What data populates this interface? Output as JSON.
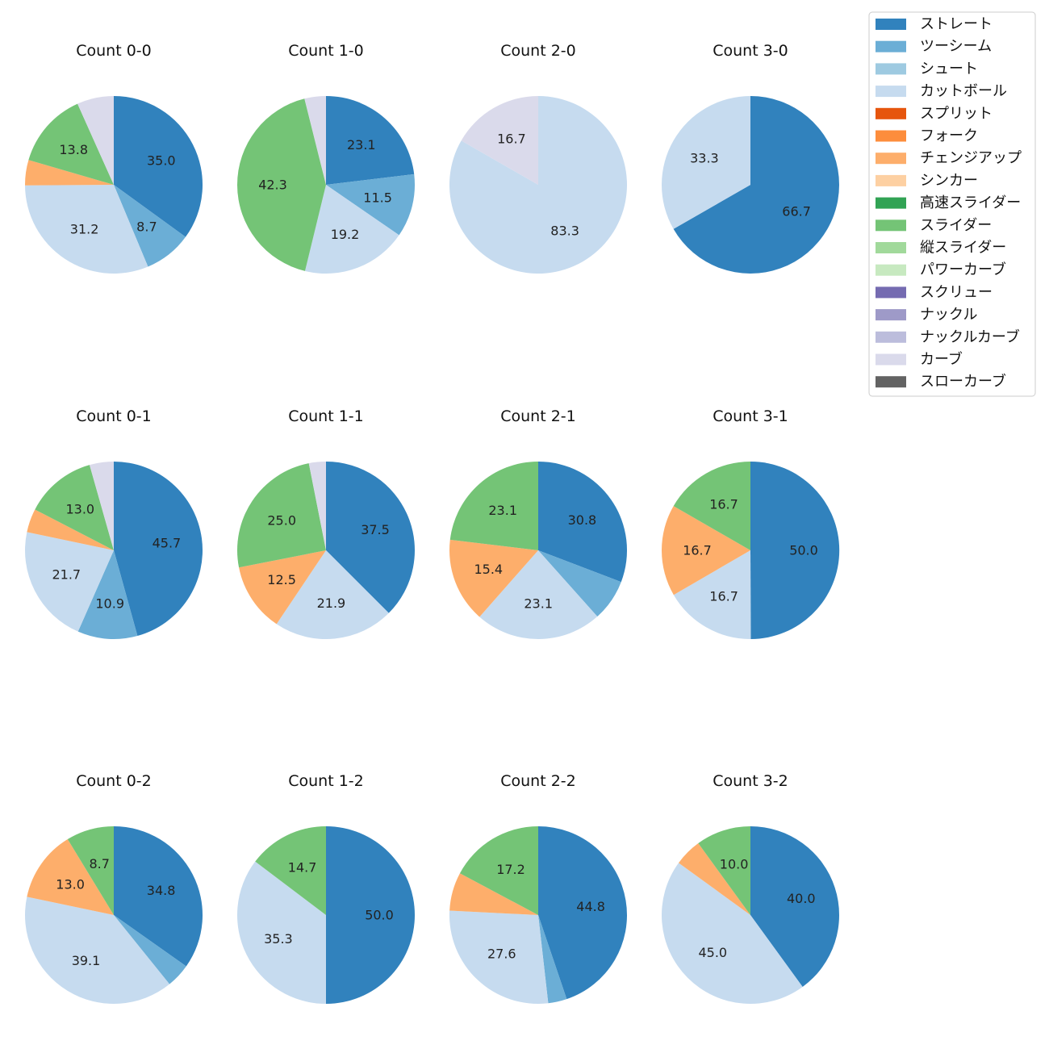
{
  "chart_data": {
    "type": "pie",
    "series_order": [
      "ストレート",
      "ツーシーム",
      "シュート",
      "カットボール",
      "スプリット",
      "フォーク",
      "チェンジアップ",
      "シンカー",
      "高速スライダー",
      "スライダー",
      "縦スライダー",
      "パワーカーブ",
      "スクリュー",
      "ナックル",
      "ナックルカーブ",
      "カーブ",
      "スローカーブ"
    ],
    "colors": {
      "ストレート": "#3182bd",
      "ツーシーム": "#6baed6",
      "シュート": "#9ecae1",
      "カットボール": "#c6dbef",
      "スプリット": "#e6550d",
      "フォーク": "#fd8d3c",
      "チェンジアップ": "#fdae6b",
      "シンカー": "#fdd0a2",
      "高速スライダー": "#31a354",
      "スライダー": "#74c476",
      "縦スライダー": "#a1d99b",
      "パワーカーブ": "#c7e9c0",
      "スクリュー": "#756bb1",
      "ナックル": "#9e9ac8",
      "ナックルカーブ": "#bcbddc",
      "カーブ": "#dadaeb",
      "スローカーブ": "#636363"
    },
    "legend": [
      "ストレート",
      "ツーシーム",
      "シュート",
      "カットボール",
      "スプリット",
      "フォーク",
      "チェンジアップ",
      "シンカー",
      "高速スライダー",
      "スライダー",
      "縦スライダー",
      "パワーカーブ",
      "スクリュー",
      "ナックル",
      "ナックルカーブ",
      "カーブ",
      "スローカーブ"
    ],
    "pies": [
      {
        "title": "Count 0-0",
        "slices": [
          {
            "label": "ストレート",
            "value": 35.0,
            "text": "35.0"
          },
          {
            "label": "ツーシーム",
            "value": 8.7,
            "text": "8.7"
          },
          {
            "label": "カットボール",
            "value": 31.2,
            "text": "31.2"
          },
          {
            "label": "チェンジアップ",
            "value": 4.6,
            "text": ""
          },
          {
            "label": "スライダー",
            "value": 13.8,
            "text": "13.8"
          },
          {
            "label": "カーブ",
            "value": 6.7,
            "text": ""
          }
        ]
      },
      {
        "title": "Count 1-0",
        "slices": [
          {
            "label": "ストレート",
            "value": 23.1,
            "text": "23.1"
          },
          {
            "label": "ツーシーム",
            "value": 11.5,
            "text": "11.5"
          },
          {
            "label": "カットボール",
            "value": 19.2,
            "text": "19.2"
          },
          {
            "label": "スライダー",
            "value": 42.3,
            "text": "42.3"
          },
          {
            "label": "カーブ",
            "value": 3.9,
            "text": ""
          }
        ]
      },
      {
        "title": "Count 2-0",
        "slices": [
          {
            "label": "カットボール",
            "value": 83.3,
            "text": "83.3"
          },
          {
            "label": "カーブ",
            "value": 16.7,
            "text": "16.7"
          }
        ]
      },
      {
        "title": "Count 3-0",
        "slices": [
          {
            "label": "ストレート",
            "value": 66.7,
            "text": "66.7"
          },
          {
            "label": "カットボール",
            "value": 33.3,
            "text": "33.3"
          }
        ]
      },
      {
        "title": "Count 0-1",
        "slices": [
          {
            "label": "ストレート",
            "value": 45.7,
            "text": "45.7"
          },
          {
            "label": "ツーシーム",
            "value": 10.9,
            "text": "10.9"
          },
          {
            "label": "カットボール",
            "value": 21.7,
            "text": "21.7"
          },
          {
            "label": "チェンジアップ",
            "value": 4.3,
            "text": ""
          },
          {
            "label": "スライダー",
            "value": 13.0,
            "text": "13.0"
          },
          {
            "label": "カーブ",
            "value": 4.4,
            "text": ""
          }
        ]
      },
      {
        "title": "Count 1-1",
        "slices": [
          {
            "label": "ストレート",
            "value": 37.5,
            "text": "37.5"
          },
          {
            "label": "カットボール",
            "value": 21.9,
            "text": "21.9"
          },
          {
            "label": "チェンジアップ",
            "value": 12.5,
            "text": "12.5"
          },
          {
            "label": "スライダー",
            "value": 25.0,
            "text": "25.0"
          },
          {
            "label": "カーブ",
            "value": 3.1,
            "text": ""
          }
        ]
      },
      {
        "title": "Count 2-1",
        "slices": [
          {
            "label": "ストレート",
            "value": 30.8,
            "text": "30.8"
          },
          {
            "label": "ツーシーム",
            "value": 7.6,
            "text": ""
          },
          {
            "label": "カットボール",
            "value": 23.1,
            "text": "23.1"
          },
          {
            "label": "チェンジアップ",
            "value": 15.4,
            "text": "15.4"
          },
          {
            "label": "スライダー",
            "value": 23.1,
            "text": "23.1"
          }
        ]
      },
      {
        "title": "Count 3-1",
        "slices": [
          {
            "label": "ストレート",
            "value": 50.0,
            "text": "50.0"
          },
          {
            "label": "カットボール",
            "value": 16.7,
            "text": "16.7"
          },
          {
            "label": "チェンジアップ",
            "value": 16.7,
            "text": "16.7"
          },
          {
            "label": "スライダー",
            "value": 16.7,
            "text": "16.7"
          }
        ]
      },
      {
        "title": "Count 0-2",
        "slices": [
          {
            "label": "ストレート",
            "value": 34.8,
            "text": "34.8"
          },
          {
            "label": "ツーシーム",
            "value": 4.4,
            "text": ""
          },
          {
            "label": "カットボール",
            "value": 39.1,
            "text": "39.1"
          },
          {
            "label": "チェンジアップ",
            "value": 13.0,
            "text": "13.0"
          },
          {
            "label": "スライダー",
            "value": 8.7,
            "text": "8.7"
          }
        ]
      },
      {
        "title": "Count 1-2",
        "slices": [
          {
            "label": "ストレート",
            "value": 50.0,
            "text": "50.0"
          },
          {
            "label": "カットボール",
            "value": 35.3,
            "text": "35.3"
          },
          {
            "label": "スライダー",
            "value": 14.7,
            "text": "14.7"
          }
        ]
      },
      {
        "title": "Count 2-2",
        "slices": [
          {
            "label": "ストレート",
            "value": 44.8,
            "text": "44.8"
          },
          {
            "label": "ツーシーム",
            "value": 3.4,
            "text": ""
          },
          {
            "label": "カットボール",
            "value": 27.6,
            "text": "27.6"
          },
          {
            "label": "チェンジアップ",
            "value": 7.0,
            "text": ""
          },
          {
            "label": "スライダー",
            "value": 17.2,
            "text": "17.2"
          }
        ]
      },
      {
        "title": "Count 3-2",
        "slices": [
          {
            "label": "ストレート",
            "value": 40.0,
            "text": "40.0"
          },
          {
            "label": "カットボール",
            "value": 45.0,
            "text": "45.0"
          },
          {
            "label": "チェンジアップ",
            "value": 5.0,
            "text": ""
          },
          {
            "label": "スライダー",
            "value": 10.0,
            "text": "10.0"
          }
        ]
      }
    ]
  }
}
